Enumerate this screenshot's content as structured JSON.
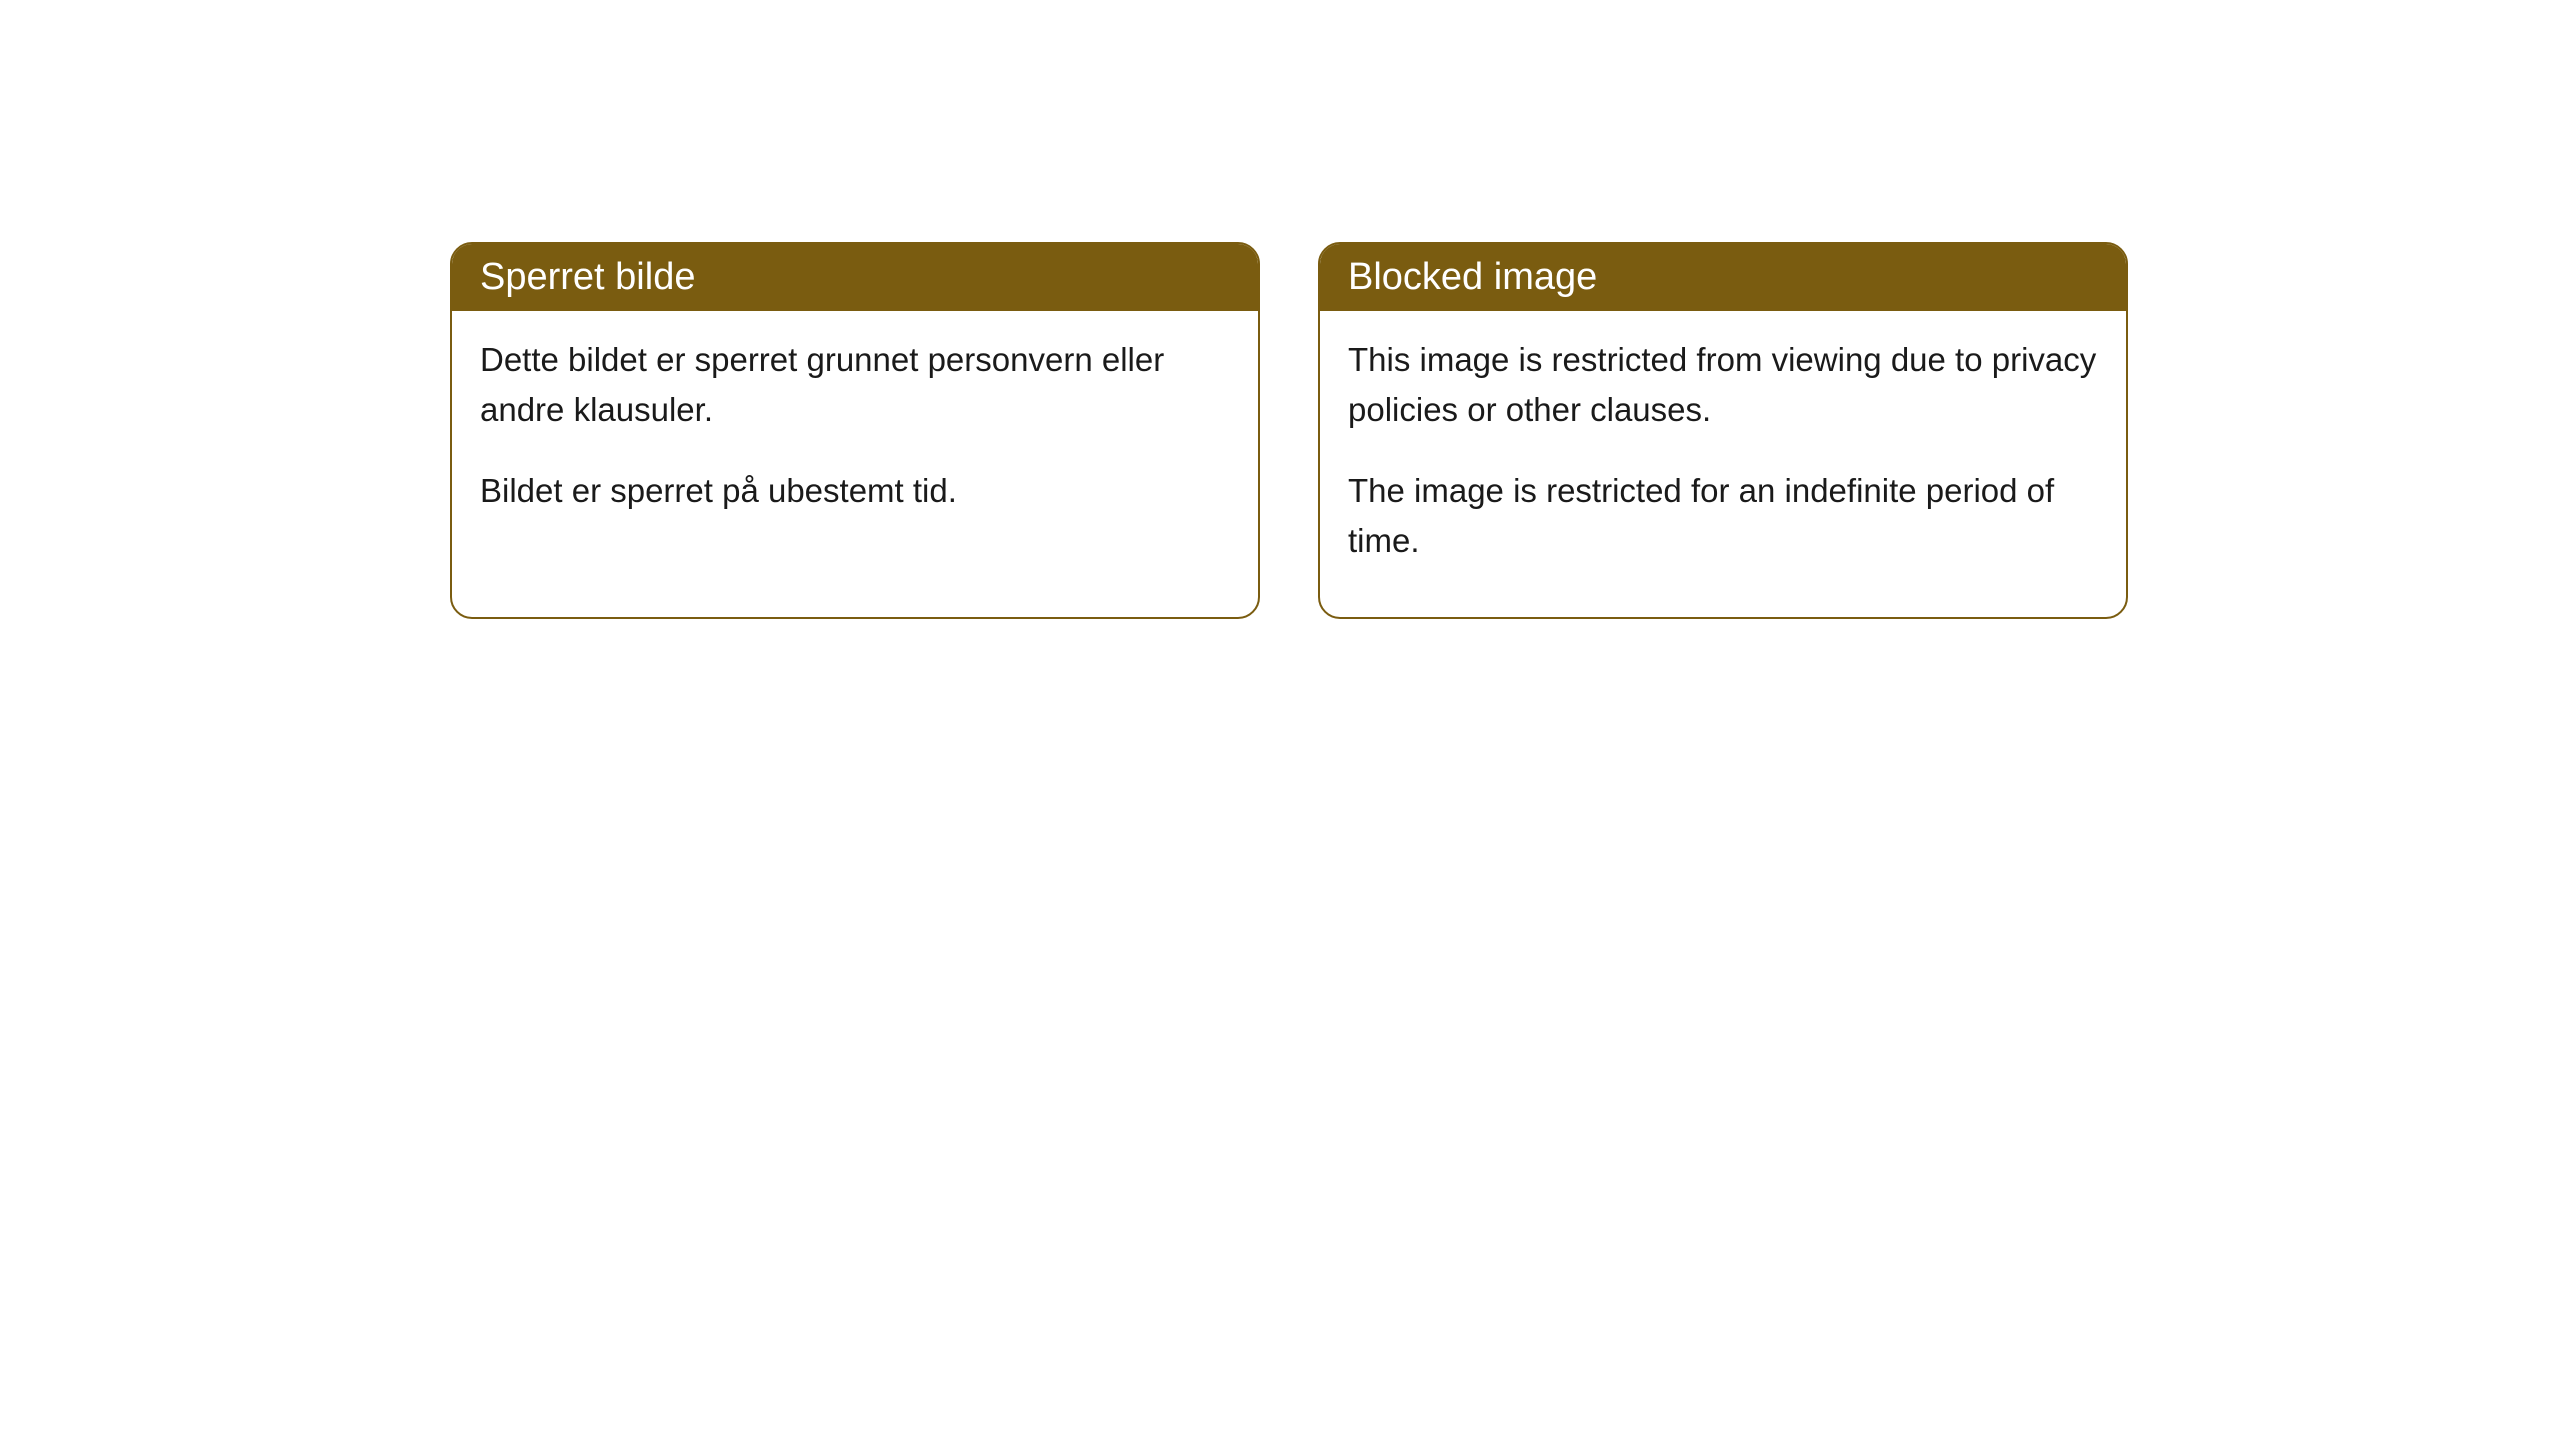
{
  "cards": [
    {
      "title": "Sperret bilde",
      "paragraph1": "Dette bildet er sperret grunnet personvern eller andre klausuler.",
      "paragraph2": "Bildet er sperret på ubestemt tid."
    },
    {
      "title": "Blocked image",
      "paragraph1": "This image is restricted from viewing due to privacy policies or other clauses.",
      "paragraph2": "The image is restricted for an indefinite period of time."
    }
  ],
  "styling": {
    "header_background": "#7a5c10",
    "header_text_color": "#ffffff",
    "border_color": "#7a5c10",
    "body_background": "#ffffff",
    "body_text_color": "#1a1a1a",
    "border_radius": 22,
    "title_fontsize": 38,
    "body_fontsize": 33
  }
}
